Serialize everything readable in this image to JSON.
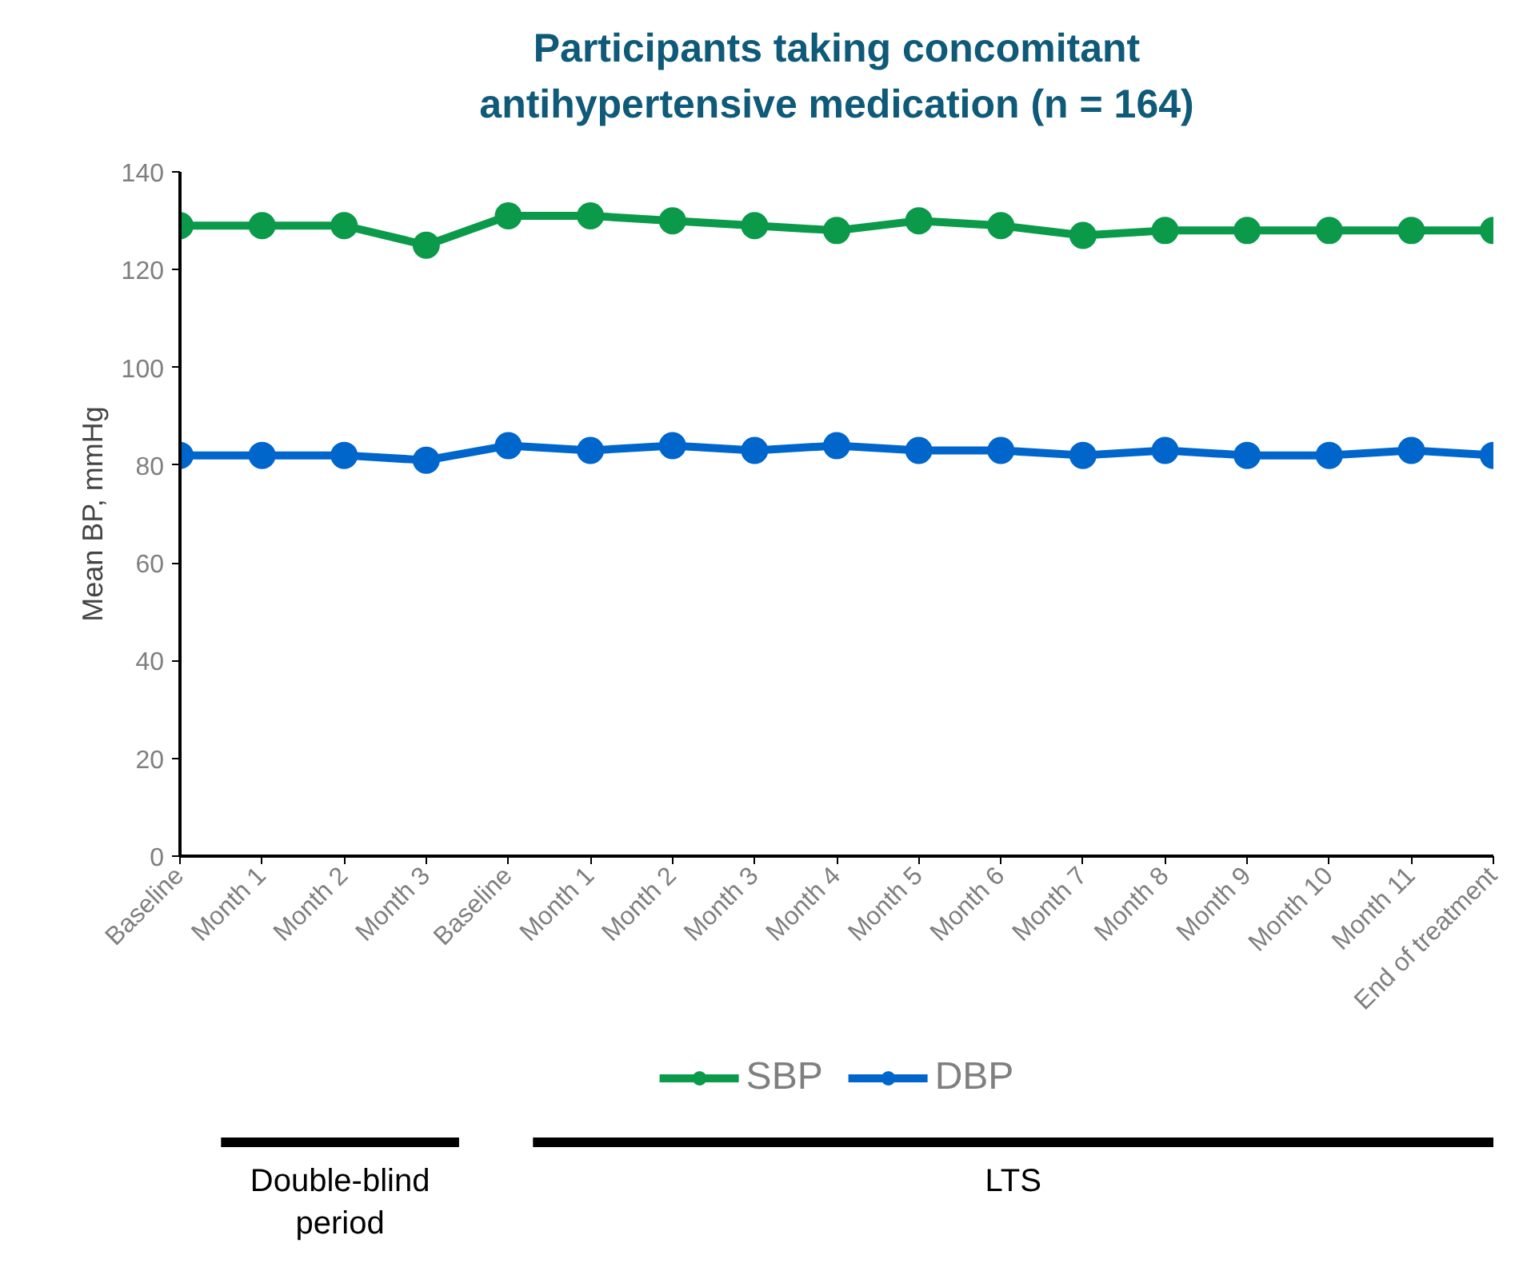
{
  "chart_data": {
    "type": "line",
    "title": "Participants taking concomitant antihypertensive medication (n = 164)",
    "ylabel": "Mean BP, mmHg",
    "categories": [
      "Baseline",
      "Month 1",
      "Month 2",
      "Month 3",
      "Baseline",
      "Month 1",
      "Month 2",
      "Month 3",
      "Month 4",
      "Month 5",
      "Month 6",
      "Month 7",
      "Month 8",
      "Month 9",
      "Month 10",
      "Month 11",
      "End of treatment"
    ],
    "series": [
      {
        "name": "SBP",
        "color": "#0a9a4a",
        "values": [
          129,
          129,
          129,
          125,
          131,
          131,
          130,
          129,
          128,
          130,
          129,
          127,
          128,
          128,
          128,
          128,
          128
        ]
      },
      {
        "name": "DBP",
        "color": "#0066cc",
        "values": [
          82,
          82,
          82,
          81,
          84,
          83,
          84,
          83,
          84,
          83,
          83,
          82,
          83,
          82,
          82,
          83,
          82
        ]
      }
    ],
    "ylim": [
      0,
      140
    ],
    "yticks": [
      0,
      20,
      40,
      60,
      80,
      100,
      120,
      140
    ],
    "grid": false,
    "legend": "bottom",
    "marker": "circle",
    "line_style": "solid",
    "annotations": [
      "Double-blind period",
      "LTS"
    ]
  }
}
